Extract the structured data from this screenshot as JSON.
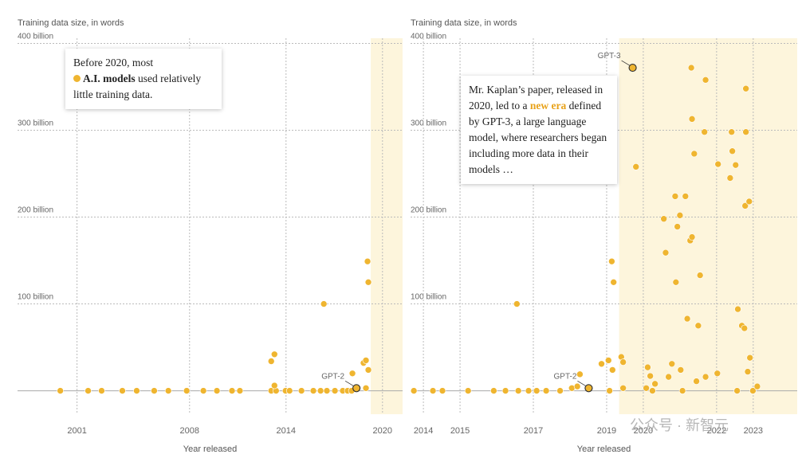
{
  "watermark": "公众号 · 新智元",
  "chart_data": [
    {
      "type": "scatter",
      "y_label": "Training data size, in words",
      "x_label": "Year released",
      "color": "#efb530",
      "grid": true,
      "highlight_range": [
        2019.27,
        2021.25
      ],
      "highlight_color": "#fdf5dc",
      "annotation": [
        "Before 2020, most",
        "A.I. models",
        "used relatively little training data."
      ],
      "xlim": [
        1997.3,
        2021.25
      ],
      "xticks": [
        2001,
        2008,
        2014,
        2020
      ],
      "ylim": [
        -27,
        406
      ],
      "yticks": [
        {
          "value": 100,
          "label": "100 billion"
        },
        {
          "value": 200,
          "label": "200 billion"
        },
        {
          "value": 300,
          "label": "300 billion"
        },
        {
          "value": 400,
          "label": "400 billion"
        }
      ],
      "x": [
        1999.96,
        2001.69,
        2002.53,
        2003.82,
        2004.71,
        2005.8,
        2006.68,
        2007.82,
        2008.86,
        2009.7,
        2010.64,
        2011.13,
        2013.08,
        2013.38,
        2013.97,
        2014.22,
        2014.96,
        2015.7,
        2016.15,
        2016.54,
        2017.04,
        2017.53,
        2017.83,
        2018.08,
        2018.38,
        2018.97,
        2013.08,
        2013.28,
        2013.28,
        2016.35,
        2018.13,
        2018.82,
        2018.97,
        2019.07,
        2019.12,
        2019.12
      ],
      "values": [
        0,
        0,
        0,
        0,
        0,
        0,
        0,
        0,
        0,
        0,
        0,
        0,
        0,
        0,
        0,
        0,
        0,
        0,
        0,
        0,
        0,
        0,
        0,
        0,
        3,
        3,
        34,
        42,
        6,
        100,
        20,
        32,
        35,
        149,
        125,
        24
      ],
      "point_labels": [
        null,
        null,
        null,
        null,
        null,
        null,
        null,
        null,
        null,
        null,
        null,
        null,
        null,
        null,
        null,
        null,
        null,
        null,
        null,
        null,
        null,
        null,
        null,
        null,
        "GPT-2",
        null,
        null,
        null,
        null,
        null,
        null,
        null,
        null,
        null,
        null,
        null
      ]
    },
    {
      "type": "scatter",
      "y_label": "Training data size, in words",
      "x_label": "Year released",
      "color": "#efb530",
      "grid": true,
      "highlight_range": [
        2019.34,
        2024.2
      ],
      "highlight_color": "#fdf5dc",
      "annotation": [
        "Mr. Kaplan’s paper, released in 2020, led to a",
        "new era",
        "defined by GPT-3, a large language model, where researchers began including more data in their models …"
      ],
      "xlim": [
        2013.65,
        2024.2
      ],
      "xticks": [
        2014,
        2015,
        2017,
        2019,
        2020,
        2022,
        2023
      ],
      "ylim": [
        -27,
        406
      ],
      "yticks": [
        {
          "value": 100,
          "label": "100 billion"
        },
        {
          "value": 200,
          "label": "200 billion"
        },
        {
          "value": 300,
          "label": "300 billion"
        },
        {
          "value": 400,
          "label": "400 billion"
        }
      ],
      "x": [
        2013.74,
        2014.26,
        2014.52,
        2015.22,
        2015.92,
        2016.24,
        2016.59,
        2016.55,
        2016.87,
        2017.09,
        2017.35,
        2017.73,
        2018.05,
        2018.2,
        2018.27,
        2018.51,
        2018.86,
        2019.05,
        2019.08,
        2019.14,
        2019.19,
        2019.16,
        2019.4,
        2019.45,
        2019.45,
        2019.71,
        2019.8,
        2020.08,
        2020.12,
        2020.19,
        2020.25,
        2020.32,
        2020.56,
        2020.61,
        2020.69,
        2020.78,
        2020.87,
        2020.89,
        2020.93,
        2021.0,
        2021.02,
        2021.07,
        2021.15,
        2021.2,
        2021.28,
        2021.31,
        2021.33,
        2021.33,
        2021.39,
        2021.45,
        2021.5,
        2021.55,
        2021.67,
        2021.7,
        2021.7,
        2022.02,
        2022.04,
        2022.37,
        2022.41,
        2022.43,
        2022.52,
        2022.58,
        2022.69,
        2022.76,
        2022.78,
        2022.8,
        2022.8,
        2022.85,
        2022.89,
        2022.91,
        2022.56,
        2022.99,
        2023.11
      ],
      "values": [
        0,
        0,
        0,
        0,
        0,
        0,
        0,
        100,
        0,
        0,
        0,
        0,
        3,
        5,
        19,
        3,
        31,
        35,
        0,
        149,
        125,
        24,
        39,
        33,
        3,
        372,
        258,
        3,
        27,
        17,
        0,
        8,
        198,
        159,
        16,
        31,
        224,
        125,
        189,
        202,
        24,
        0,
        224,
        83,
        173,
        372,
        177,
        313,
        273,
        11,
        75,
        133,
        298,
        358,
        16,
        20,
        261,
        245,
        298,
        276,
        260,
        94,
        75,
        72,
        213,
        298,
        348,
        22,
        218,
        38,
        0,
        0,
        5
      ],
      "point_labels": [
        null,
        null,
        null,
        null,
        null,
        null,
        null,
        null,
        null,
        null,
        null,
        null,
        null,
        null,
        null,
        "GPT-2",
        null,
        null,
        null,
        null,
        null,
        null,
        null,
        null,
        null,
        "GPT-3",
        null,
        null,
        null,
        null,
        null,
        null,
        null,
        null,
        null,
        null,
        null,
        null,
        null,
        null,
        null,
        null,
        null,
        null,
        null,
        null,
        null,
        null,
        null,
        null,
        null,
        null,
        null,
        null,
        null,
        null,
        null,
        null,
        null,
        null,
        null,
        null,
        null,
        null,
        null,
        null,
        null,
        null,
        null,
        null,
        null,
        null,
        null
      ]
    }
  ]
}
